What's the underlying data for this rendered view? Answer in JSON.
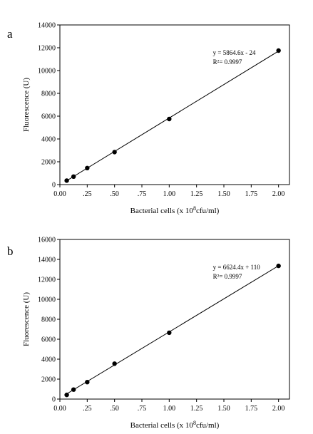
{
  "panels": [
    {
      "letter": "a"
    },
    {
      "letter": "b"
    }
  ],
  "chart_data": [
    {
      "type": "scatter",
      "panel": "a",
      "xlabel_prefix": "Bacterial cells (x 10",
      "xlabel_sup": "8",
      "xlabel_suffix": "cfu/ml)",
      "ylabel": "Fluorescence (U)",
      "xlim": [
        0,
        2.1
      ],
      "ylim": [
        0,
        14000
      ],
      "xticks": [
        0,
        0.25,
        0.5,
        0.75,
        1.0,
        1.25,
        1.5,
        1.75,
        2.0
      ],
      "xtick_labels": [
        "0.00",
        ".25",
        ".50",
        ".75",
        "1.00",
        "1.25",
        "1.50",
        "1.75",
        "2.00"
      ],
      "yticks": [
        0,
        2000,
        4000,
        6000,
        8000,
        10000,
        12000,
        14000
      ],
      "ytick_labels": [
        "0",
        "2000",
        "4000",
        "6000",
        "8000",
        "10000",
        "12000",
        "14000"
      ],
      "grid": false,
      "points": {
        "x": [
          0.0625,
          0.125,
          0.25,
          0.5,
          1.0,
          2.0
        ],
        "y": [
          350,
          700,
          1450,
          2850,
          5750,
          11750
        ]
      },
      "fit": {
        "slope": 5864.6,
        "intercept": -24
      },
      "annotation": {
        "equation": "y = 5864.6x - 24",
        "r2": "R²= 0.9997"
      }
    },
    {
      "type": "scatter",
      "panel": "b",
      "xlabel_prefix": "Bacterial cells (x 10",
      "xlabel_sup": "8",
      "xlabel_suffix": "cfu/ml)",
      "ylabel": "Fluorescence (U)",
      "xlim": [
        0,
        2.1
      ],
      "ylim": [
        0,
        16000
      ],
      "xticks": [
        0,
        0.25,
        0.5,
        0.75,
        1.0,
        1.25,
        1.5,
        1.75,
        2.0
      ],
      "xtick_labels": [
        "0.00",
        ".25",
        ".50",
        ".75",
        "1.00",
        "1.25",
        "1.50",
        "1.75",
        "2.00"
      ],
      "yticks": [
        0,
        2000,
        4000,
        6000,
        8000,
        10000,
        12000,
        14000,
        16000
      ],
      "ytick_labels": [
        "0",
        "2000",
        "4000",
        "6000",
        "8000",
        "10000",
        "12000",
        "14000",
        "16000"
      ],
      "grid": false,
      "points": {
        "x": [
          0.0625,
          0.125,
          0.25,
          0.5,
          1.0,
          2.0
        ],
        "y": [
          420,
          950,
          1700,
          3550,
          6650,
          13350
        ]
      },
      "fit": {
        "slope": 6624.4,
        "intercept": 110
      },
      "annotation": {
        "equation": "y = 6624.4x + 110",
        "r2": "R²= 0.9997"
      }
    }
  ]
}
